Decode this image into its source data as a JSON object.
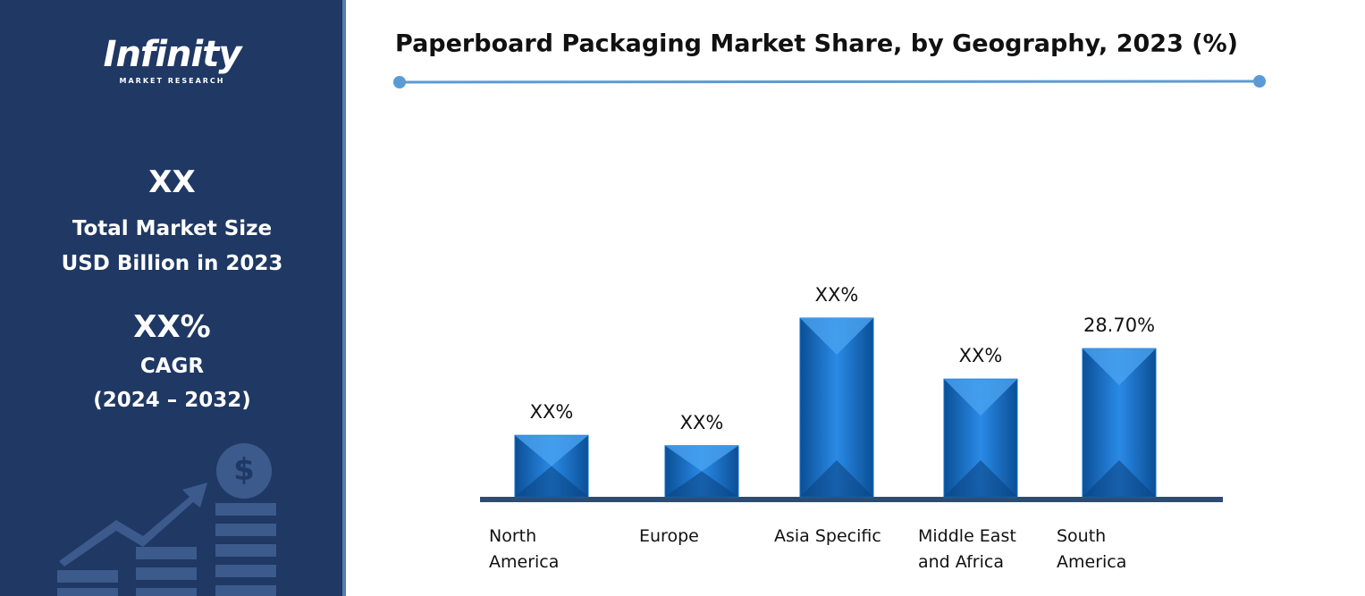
{
  "sidebar": {
    "logo": "Infinity",
    "logo_sub": "MARKET RESEARCH",
    "market_size": "XX",
    "market_size_label_1": "Total Market Size",
    "market_size_label_2": "USD Billion in 2023",
    "cagr": "XX%",
    "cagr_label": "CAGR",
    "cagr_period": "(2024 – 2032)"
  },
  "chart_data": {
    "type": "bar",
    "title": "Paperboard Packaging Market Share, by Geography, 2023 (%)",
    "categories": [
      "North America",
      "Europe",
      "Asia Specific",
      "Middle East and Africa",
      "South America"
    ],
    "values": [
      11.9,
      9.9,
      34.6,
      22.8,
      28.7
    ],
    "value_labels": [
      "XX%",
      "XX%",
      "XX%",
      "XX%",
      "28.70%"
    ],
    "color": "#0f6fc6"
  }
}
